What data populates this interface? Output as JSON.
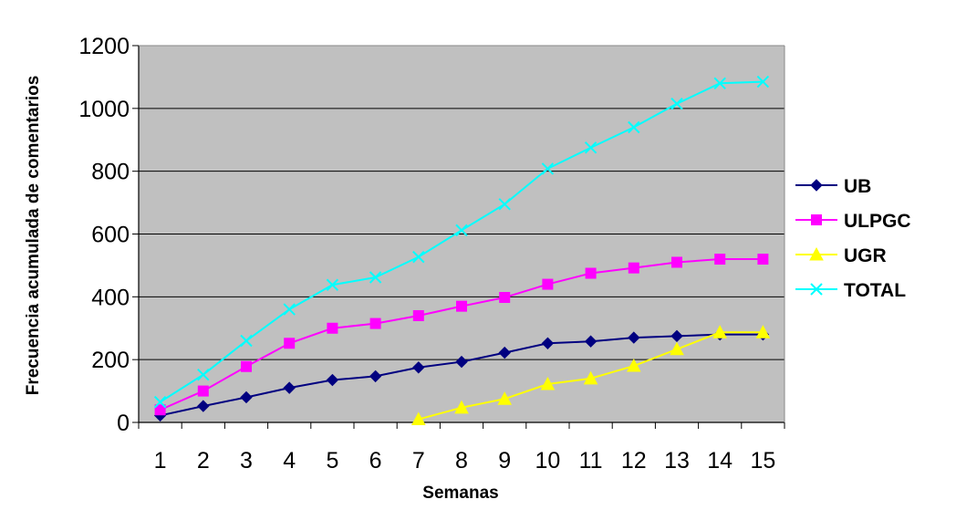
{
  "chart_data": {
    "type": "line",
    "xlabel": "Semanas",
    "ylabel": "Frecuencia acumulada de comentarios",
    "categories": [
      "1",
      "2",
      "3",
      "4",
      "5",
      "6",
      "7",
      "8",
      "9",
      "10",
      "11",
      "12",
      "13",
      "14",
      "15"
    ],
    "ylim": [
      0,
      1200
    ],
    "yticks": [
      0,
      200,
      400,
      600,
      800,
      1000,
      1200
    ],
    "grid": true,
    "legend_position": "right",
    "plot_background": "#c0c0c0",
    "series": [
      {
        "name": "UB",
        "color": "#000080",
        "marker": "diamond",
        "values": [
          22,
          52,
          80,
          110,
          135,
          147,
          175,
          193,
          222,
          252,
          258,
          270,
          275,
          280,
          280
        ]
      },
      {
        "name": "ULPGC",
        "color": "#ff00ff",
        "marker": "square",
        "values": [
          40,
          100,
          178,
          252,
          300,
          315,
          340,
          370,
          398,
          440,
          475,
          492,
          510,
          520,
          520
        ]
      },
      {
        "name": "UGR",
        "color": "#ffff00",
        "marker": "triangle",
        "values": [
          null,
          null,
          null,
          null,
          null,
          null,
          10,
          47,
          75,
          122,
          140,
          180,
          233,
          287,
          287
        ]
      },
      {
        "name": "TOTAL",
        "color": "#00ffff",
        "marker": "x",
        "values": [
          65,
          152,
          260,
          360,
          438,
          462,
          527,
          612,
          695,
          808,
          875,
          940,
          1015,
          1080,
          1085
        ]
      }
    ]
  }
}
